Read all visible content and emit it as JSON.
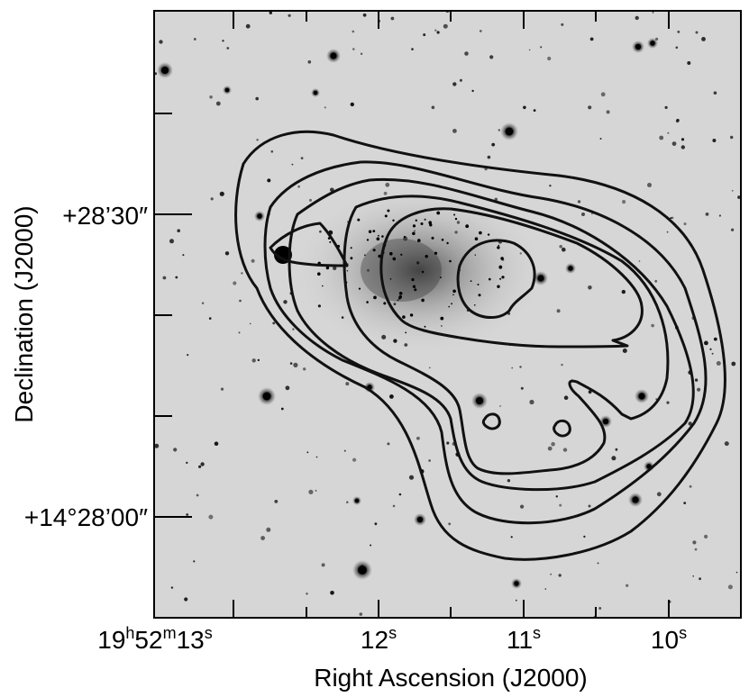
{
  "chart_data": {
    "type": "contour",
    "background": "greyscale optical sky image with stars and a diffuse galaxy",
    "contour_color": "#111111",
    "contour_levels": 6,
    "xlabel": "Right Ascension (J2000)",
    "ylabel": "Declination (J2000)",
    "x_ticks": [
      {
        "h": "19",
        "hs": "h",
        "m": "52",
        "ms": "m",
        "s": "13",
        "ss": "s"
      },
      {
        "s": "12",
        "ss": "s"
      },
      {
        "s": "11",
        "ss": "s"
      },
      {
        "s": "10",
        "ss": "s"
      }
    ],
    "y_ticks": [
      {
        "label": "+28’30″"
      },
      {
        "label": "+14°28’00″"
      }
    ]
  }
}
